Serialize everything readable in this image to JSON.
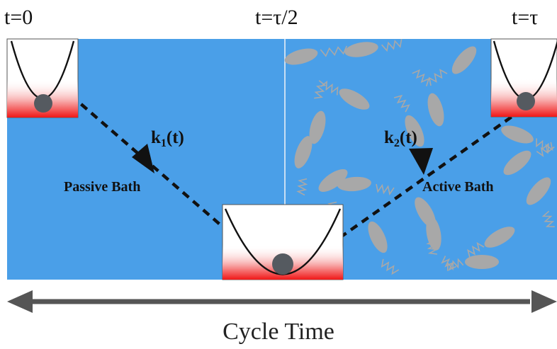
{
  "labels": {
    "t_start": "t=0",
    "t_half": "t=τ/2",
    "t_end": "t=τ",
    "k1_main": "k",
    "k1_sub": "1",
    "k1_tail": "(t)",
    "k2_main": "k",
    "k2_sub": "2",
    "k2_tail": "(t)",
    "passive": "Passive Bath",
    "active": "Active Bath",
    "axis": "Cycle Time"
  },
  "colors": {
    "bath": "#4a9fe8",
    "particle": "#a8a8a8",
    "trap_fill": "#ffffff",
    "trap_heat": "#f01818",
    "ball": "#555a60"
  }
}
